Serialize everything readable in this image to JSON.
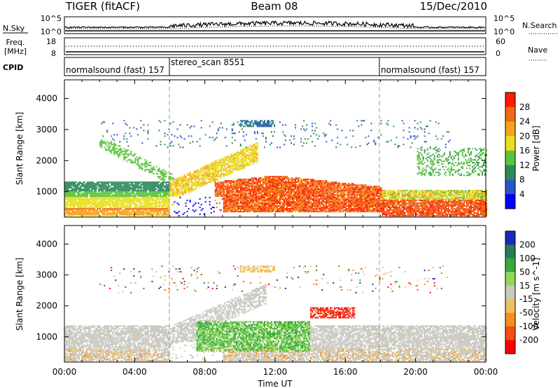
{
  "header": {
    "radar": "TIGER (fitACF)",
    "beam": "Beam 08",
    "date": "15/Dec/2010"
  },
  "nsky_panel": {
    "left_label": "N.Sky",
    "right_label": "N.Search",
    "left_ticks": [
      "10^5",
      "10^0"
    ],
    "right_ticks": [
      "10^5",
      "10^0"
    ]
  },
  "freq_panel": {
    "left_label_line1": "Freq.",
    "left_label_line2": "[MHz]",
    "right_label": "Nave",
    "left_ticks": [
      "18",
      "8"
    ],
    "right_ticks": [
      "60",
      "0"
    ]
  },
  "cpid_panel": {
    "label": "CPID",
    "segments": [
      {
        "label": "normalsound (fast) 157",
        "start": "00:00",
        "end": "06:00"
      },
      {
        "label": "stereo_scan 8551",
        "start": "06:00",
        "end": "18:00"
      },
      {
        "label": "normalsound (fast) 157",
        "start": "18:00",
        "end": "24:00"
      }
    ]
  },
  "x_axis": {
    "label": "Time UT",
    "ticks": [
      "00:00",
      "04:00",
      "08:00",
      "12:00",
      "16:00",
      "20:00",
      "00:00"
    ]
  },
  "power_panel": {
    "ylabel": "Slant Range [km]",
    "yticks": [
      "1000",
      "2000",
      "3000",
      "4000"
    ],
    "colorbar_label": "Power [dB]",
    "colorbar_ticks": [
      "4",
      "8",
      "12",
      "16",
      "20",
      "24",
      "28"
    ],
    "colors": [
      "#0000ff",
      "#2a55c8",
      "#2e8a5a",
      "#5cc33a",
      "#e8e020",
      "#f5a21c",
      "#ef6a12",
      "#ff1a00"
    ]
  },
  "velocity_panel": {
    "ylabel": "Slant Range [km]",
    "yticks": [
      "1000",
      "2000",
      "3000",
      "4000"
    ],
    "colorbar_label": "Velocity [m s^-1]",
    "colorbar_ticks": [
      "200",
      "100",
      "50",
      "15",
      "-15",
      "-50",
      "-100",
      "-200"
    ],
    "colors": [
      "#1a2ab8",
      "#2c7a5a",
      "#3aa83a",
      "#8ed85a",
      "#c8c8c0",
      "#f0c060",
      "#f59020",
      "#f05010",
      "#ff0000"
    ]
  },
  "chart_data": {
    "type": "heatmap",
    "title": "TIGER (fitACF) Beam 08 15/Dec/2010",
    "xlabel": "Time UT",
    "ylabel": "Slant Range [km]",
    "xlim": [
      "00:00",
      "24:00"
    ],
    "ylim": [
      180,
      4600
    ],
    "series": [
      {
        "name": "Power [dB]",
        "range": [
          0,
          32
        ],
        "echo_regions_hours_km": [
          {
            "t": [
              0,
              6
            ],
            "range_km": [
              250,
              1300
            ],
            "typical_dB": 14
          },
          {
            "t": [
              6,
              10
            ],
            "range_km": [
              900,
              2400
            ],
            "typical_dB": 20
          },
          {
            "t": [
              9,
              18
            ],
            "range_km": [
              300,
              1400
            ],
            "typical_dB": 28
          },
          {
            "t": [
              18,
              24
            ],
            "range_km": [
              300,
              1100
            ],
            "typical_dB": 24
          },
          {
            "t": [
              9,
              12
            ],
            "range_km": [
              3000,
              3300
            ],
            "typical_dB": 8
          }
        ]
      },
      {
        "name": "Velocity [m s^-1]",
        "range": [
          -200,
          200
        ],
        "echo_regions_hours_km": [
          {
            "t": [
              0,
              24
            ],
            "range_km": [
              300,
              1300
            ],
            "typical_ms": 0
          },
          {
            "t": [
              8,
              14
            ],
            "range_km": [
              600,
              1600
            ],
            "typical_ms": 40
          },
          {
            "t": [
              14,
              16
            ],
            "range_km": [
              1600,
              1900
            ],
            "typical_ms": -150
          }
        ]
      }
    ]
  }
}
